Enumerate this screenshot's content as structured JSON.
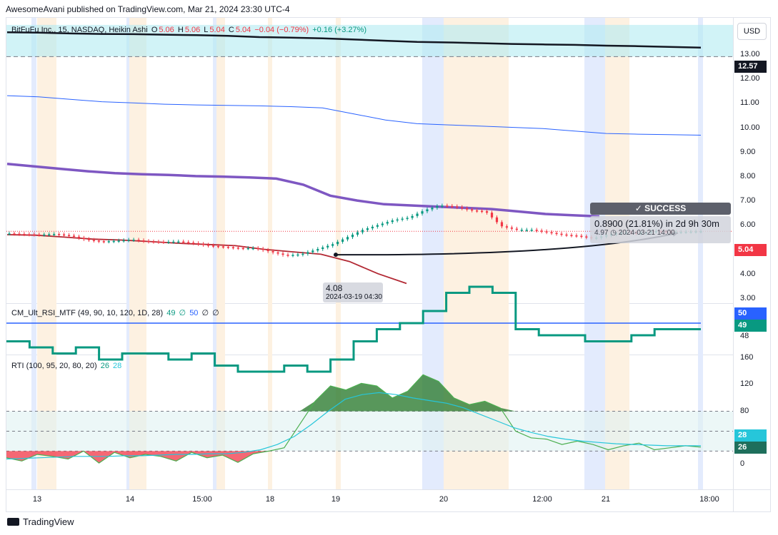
{
  "header": {
    "publish_line": "AwesomeAvani published on TradingView.com, Mar 21, 2024 23:30 UTC-4"
  },
  "currency_button": "USD",
  "footer": {
    "brand": "TradingView"
  },
  "panes": {
    "price": {
      "symbol": "BitFuFu Inc., 15, NASDAQ, Heikin Ashi",
      "o_label": "O",
      "o_value": "5.06",
      "h_label": "H",
      "h_value": "5.06",
      "l_label": "L",
      "l_value": "5.04",
      "c_label": "C",
      "c_value": "5.04",
      "change": "−0.04 (−0.79%)",
      "ext_change": "+0.16 (+3.27%)",
      "tag_top": "12.57",
      "tag_last": "5.04"
    },
    "rsi": {
      "name": "CM_Ult_RSI_MTF (49, 90, 10, 120, 1D, 28)",
      "v1": "49",
      "s1": "∅",
      "v2": "50",
      "s2": "∅",
      "s3": "∅",
      "tag_upper": "50",
      "tag_lower": "49",
      "tick": "48"
    },
    "rti": {
      "name": "RTI (100, 95, 20, 80, 20)",
      "v1": "26",
      "v2": "28",
      "tag_upper": "28",
      "tag_lower": "26"
    }
  },
  "annotations": {
    "success": "✓ SUCCESS",
    "result_line1": "0.8900 (21.81%) in 2d 9h 30m",
    "result_price": "4.97",
    "result_date": "2024-03-21  14:00",
    "low_price": "4.08",
    "low_date": "2024-03-19 04:30"
  },
  "price_ticks": [
    "13.00",
    "12.00",
    "11.00",
    "10.00",
    "9.00",
    "8.00",
    "7.00",
    "6.00",
    "5.00",
    "4.00",
    "3.00"
  ],
  "rti_ticks": [
    "160",
    "120",
    "80",
    "40",
    "0"
  ],
  "time_ticks": [
    "13",
    "14",
    "15:00",
    "18",
    "19",
    "20",
    "12:00",
    "21",
    "18:00"
  ],
  "colors": {
    "up": "#089981",
    "down": "#f23645",
    "ma_black": "#131722",
    "ma_blue": "#2962ff",
    "ma_purple": "#7e57c2",
    "ma_red": "#b22833",
    "rsi_line": "#089981",
    "rsi_ref": "#2962ff",
    "rti_line": "#4caf50",
    "rti_signal": "#26c6da",
    "zone_cyan": "#b2ebf2"
  },
  "chart_data": [
    {
      "type": "candlestick",
      "title": "BitFuFu Inc., 15, NASDAQ, Heikin Ashi",
      "x_ticks": [
        "13",
        "14",
        "15:00",
        "18",
        "19",
        "20",
        "12:00",
        "21",
        "18:00"
      ],
      "ylim": [
        2.8,
        13.5
      ],
      "y_ticks": [
        13,
        12,
        11,
        10,
        9,
        8,
        7,
        6,
        5,
        4,
        3
      ],
      "last_price": 5.04,
      "close_path": [
        4.95,
        4.92,
        4.9,
        4.93,
        4.85,
        4.7,
        4.62,
        4.65,
        4.7,
        4.62,
        4.6,
        4.62,
        4.55,
        4.45,
        4.4,
        4.35,
        4.35,
        4.2,
        4.05,
        4.1,
        4.3,
        4.5,
        4.8,
        5.1,
        5.3,
        5.5,
        5.6,
        5.9,
        6.1,
        6.05,
        5.9,
        5.85,
        5.25,
        5.1,
        5.1,
        5.0,
        4.9,
        4.85,
        4.75,
        4.9,
        5.0,
        4.95,
        5.05,
        5.0,
        5.02,
        5.04
      ],
      "overlays": [
        {
          "name": "black_ma",
          "values": [
            13.2,
            13.18,
            13.15,
            13.13,
            13.12,
            13.1,
            13.08,
            13.05,
            13.0,
            12.98,
            12.95,
            12.9,
            12.85,
            12.8,
            12.78,
            12.75,
            12.72,
            12.7,
            12.68,
            12.65,
            12.63,
            12.6,
            12.57
          ]
        },
        {
          "name": "blue_ma",
          "values": [
            10.6,
            10.55,
            10.45,
            10.35,
            10.3,
            10.25,
            10.22,
            10.2,
            10.18,
            10.15,
            10.1,
            9.85,
            9.6,
            9.45,
            9.4,
            9.35,
            9.3,
            9.25,
            9.15,
            9.05,
            9.02,
            9.0,
            8.98
          ]
        },
        {
          "name": "purple_ma",
          "values": [
            7.8,
            7.7,
            7.6,
            7.5,
            7.42,
            7.38,
            7.35,
            7.3,
            7.28,
            7.25,
            7.2,
            6.95,
            6.5,
            6.3,
            6.15,
            6.1,
            6.05,
            6.0,
            5.95,
            5.85,
            5.75,
            5.7,
            5.65
          ]
        },
        {
          "name": "red_ma",
          "values": [
            4.9,
            4.88,
            4.8,
            4.72,
            4.68,
            4.62,
            4.55,
            4.5,
            4.45,
            4.3,
            4.2,
            4.1,
            3.8,
            3.3,
            2.9
          ]
        },
        {
          "name": "cyan_zone",
          "range": [
            12.2,
            13.5
          ]
        }
      ],
      "drawing": {
        "from": {
          "date": "2024-03-19 04:30",
          "price": 4.08
        },
        "to": {
          "date": "2024-03-21 14:00",
          "price": 4.97
        },
        "result": "0.8900 (21.81%) in 2d 9h 30m",
        "status": "SUCCESS"
      }
    },
    {
      "type": "line",
      "title": "CM_Ult_RSI_MTF (49, 90, 10, 120, 1D, 28)",
      "series": [
        {
          "name": "",
          "values": [
            47,
            46,
            45,
            46,
            44,
            45,
            45,
            44,
            45,
            43,
            42,
            42,
            43,
            42,
            44,
            47,
            49,
            50,
            52,
            55,
            56,
            55,
            49,
            48,
            48,
            47,
            47,
            48,
            49,
            49,
            49
          ]
        }
      ],
      "reference": 50
    },
    {
      "type": "area",
      "title": "RTI (100, 95, 20, 80, 20)",
      "ylim": [
        -10,
        160
      ],
      "y_ticks": [
        160,
        120,
        80,
        40,
        0
      ],
      "bands": [
        20,
        80
      ],
      "series": [
        {
          "name": "",
          "values": [
            10,
            5,
            15,
            12,
            8,
            20,
            2,
            18,
            10,
            15,
            12,
            5,
            18,
            10,
            14,
            3,
            16,
            20,
            25,
            60,
            95,
            118,
            112,
            122,
            118,
            100,
            110,
            135,
            125,
            100,
            90,
            95,
            85,
            50,
            40,
            38,
            30,
            35,
            30,
            22,
            28,
            32,
            22,
            25,
            28,
            26
          ]
        },
        {
          "name": "",
          "values": [
            8,
            9,
            10,
            11,
            12,
            12,
            12,
            13,
            13,
            14,
            15,
            15,
            16,
            16,
            18,
            22,
            30,
            42,
            60,
            80,
            98,
            105,
            108,
            105,
            100,
            96,
            92,
            85,
            75,
            65,
            55,
            48,
            42,
            38,
            35,
            33,
            31,
            30,
            29,
            28,
            28,
            28
          ]
        }
      ]
    }
  ]
}
